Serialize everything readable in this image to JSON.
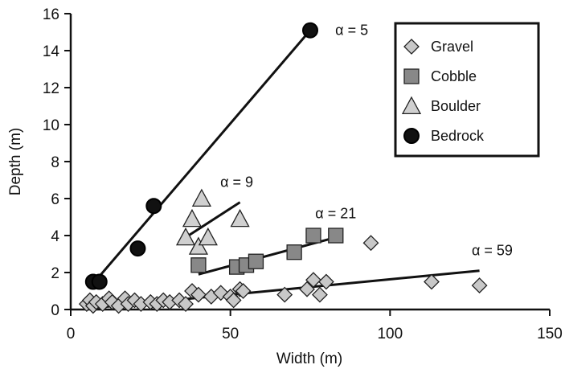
{
  "chart_data": {
    "type": "scatter",
    "xlabel": "Width (m)",
    "ylabel": "Depth (m)",
    "xlim": [
      0,
      150
    ],
    "ylim": [
      0,
      16
    ],
    "x_ticks": [
      "0",
      "50",
      "100",
      "150"
    ],
    "y_ticks": [
      "0",
      "2",
      "4",
      "6",
      "8",
      "10",
      "12",
      "14",
      "16"
    ],
    "legend_position": "top-right",
    "series": [
      {
        "name": "Gravel",
        "marker": "diamond",
        "color": "#c8c8c8",
        "x": [
          5,
          6,
          7,
          8,
          10,
          12,
          13,
          15,
          17,
          18,
          20,
          22,
          25,
          27,
          29,
          31,
          34,
          36,
          38,
          40,
          44,
          47,
          50,
          51,
          53,
          54,
          67,
          74,
          76,
          78,
          80,
          94,
          113,
          128
        ],
        "y": [
          0.3,
          0.5,
          0.2,
          0.4,
          0.3,
          0.6,
          0.4,
          0.2,
          0.6,
          0.3,
          0.5,
          0.3,
          0.4,
          0.3,
          0.5,
          0.4,
          0.5,
          0.3,
          1.0,
          0.8,
          0.7,
          0.9,
          0.7,
          0.5,
          1.1,
          1.0,
          0.8,
          1.1,
          1.6,
          0.8,
          1.5,
          3.6,
          1.5,
          1.3
        ]
      },
      {
        "name": "Cobble",
        "marker": "square",
        "color": "#888888",
        "x": [
          40,
          52,
          55,
          58,
          70,
          76,
          83
        ],
        "y": [
          2.4,
          2.3,
          2.4,
          2.6,
          3.1,
          4.0,
          4.0
        ]
      },
      {
        "name": "Boulder",
        "marker": "triangle",
        "color": "#d0d0d0",
        "x": [
          36,
          38,
          40,
          41,
          43,
          53
        ],
        "y": [
          3.9,
          4.9,
          3.4,
          6.0,
          3.9,
          4.9
        ]
      },
      {
        "name": "Bedrock",
        "marker": "circle",
        "color": "#111111",
        "x": [
          7,
          9,
          21,
          26,
          75
        ],
        "y": [
          1.5,
          1.5,
          3.3,
          5.6,
          15.1
        ]
      }
    ],
    "fit_lines": [
      {
        "label": "α = 5",
        "x": [
          8,
          75
        ],
        "y": [
          1.6,
          15.1
        ],
        "label_at": [
          88,
          15.1
        ]
      },
      {
        "label": "α = 9",
        "x": [
          36,
          53
        ],
        "y": [
          3.9,
          5.8
        ],
        "label_at": [
          52,
          6.9
        ]
      },
      {
        "label": "α = 21",
        "x": [
          40,
          83
        ],
        "y": [
          1.9,
          3.9
        ],
        "label_at": [
          83,
          5.2
        ]
      },
      {
        "label": "α = 59",
        "x": [
          5,
          128
        ],
        "y": [
          0.05,
          2.1
        ],
        "label_at": [
          132,
          3.2
        ]
      }
    ]
  }
}
